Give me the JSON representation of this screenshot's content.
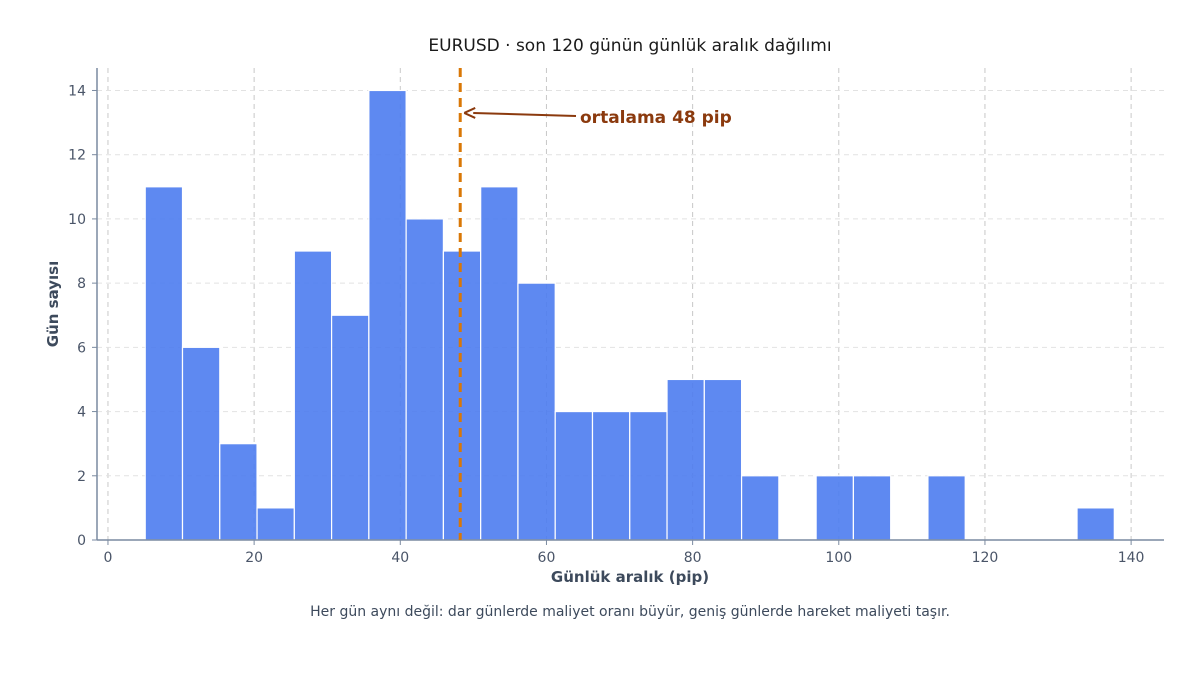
{
  "chart_data": {
    "type": "bar",
    "title": "EURUSD · son 120 günün günlük aralık dağılımı",
    "xlabel": "Günlük aralık (pip)",
    "ylabel": "Gün sayısı",
    "caption": "Her gün aynı değil: dar günlerde maliyet oranı büyür, geniş günlerde hareket maliyeti taşır.",
    "bin_width": 5.1,
    "bins": [
      {
        "x0": 5.1,
        "count": 11
      },
      {
        "x0": 10.2,
        "count": 6
      },
      {
        "x0": 15.3,
        "count": 3
      },
      {
        "x0": 20.4,
        "count": 1
      },
      {
        "x0": 25.5,
        "count": 9
      },
      {
        "x0": 30.6,
        "count": 7
      },
      {
        "x0": 35.7,
        "count": 14
      },
      {
        "x0": 40.8,
        "count": 10
      },
      {
        "x0": 45.9,
        "count": 9
      },
      {
        "x0": 51.0,
        "count": 11
      },
      {
        "x0": 56.1,
        "count": 8
      },
      {
        "x0": 61.2,
        "count": 4
      },
      {
        "x0": 66.3,
        "count": 4
      },
      {
        "x0": 71.4,
        "count": 4
      },
      {
        "x0": 76.5,
        "count": 5
      },
      {
        "x0": 81.6,
        "count": 5
      },
      {
        "x0": 86.7,
        "count": 2
      },
      {
        "x0": 91.8,
        "count": 0
      },
      {
        "x0": 96.9,
        "count": 2
      },
      {
        "x0": 102.0,
        "count": 2
      },
      {
        "x0": 107.1,
        "count": 0
      },
      {
        "x0": 112.2,
        "count": 2
      },
      {
        "x0": 117.3,
        "count": 0
      },
      {
        "x0": 122.4,
        "count": 0
      },
      {
        "x0": 127.5,
        "count": 0
      },
      {
        "x0": 132.6,
        "count": 1
      }
    ],
    "xlim": [
      -1.5,
      144.5
    ],
    "ylim": [
      0,
      14.7
    ],
    "xticks": [
      0,
      20,
      40,
      60,
      80,
      100,
      120,
      140
    ],
    "yticks": [
      0,
      2,
      4,
      6,
      8,
      10,
      12,
      14
    ],
    "mean": {
      "value": 48.2,
      "label": "ortalama 48 pip",
      "color": "#d97706"
    },
    "bar_color": "#4c7cf0",
    "annotation_color": "#8b3a0e",
    "grid": true
  }
}
